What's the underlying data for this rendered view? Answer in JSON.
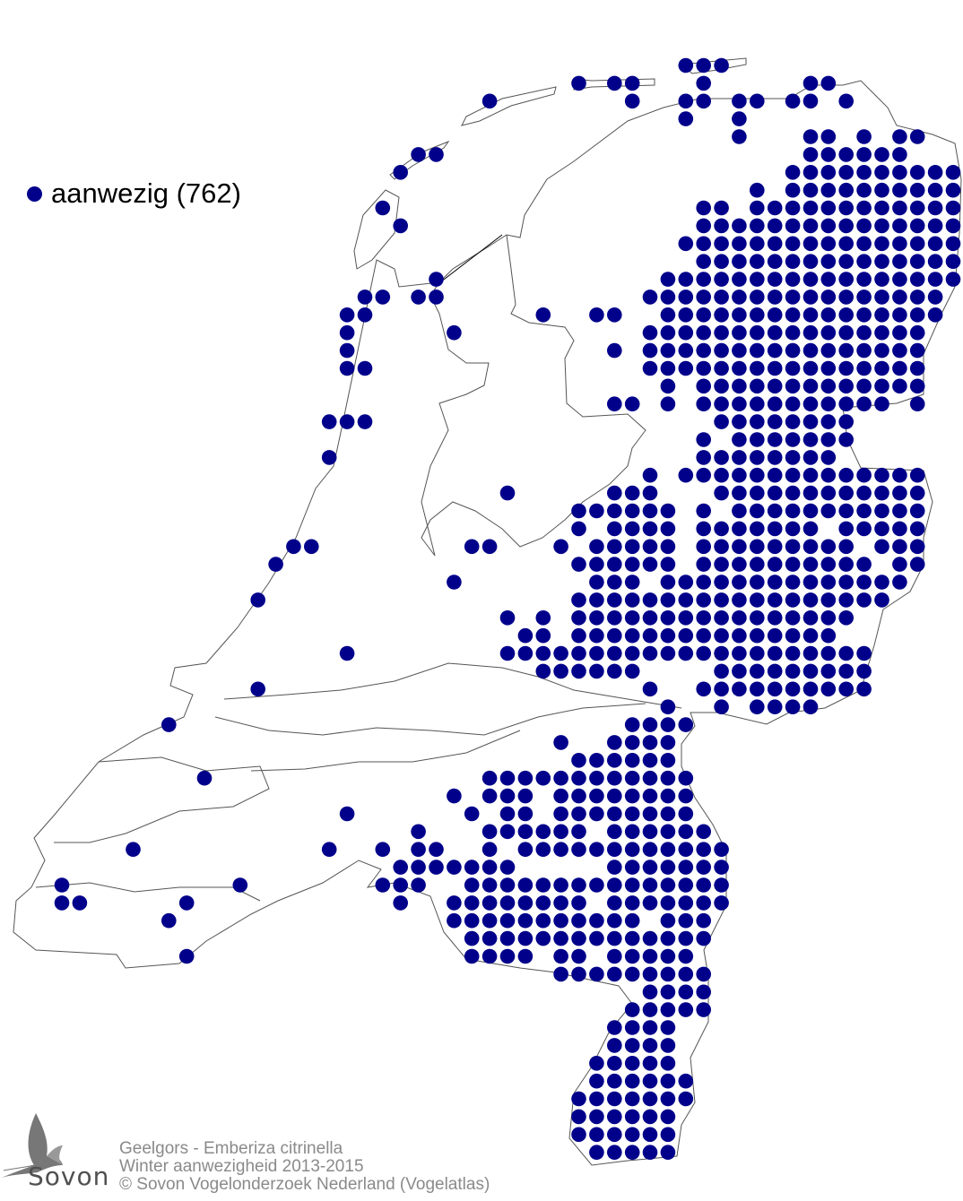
{
  "legend": {
    "label": "aanwezig (762)",
    "dot_color": "#00008b"
  },
  "credits": {
    "line1": "Geelgors - Emberiza citrinella",
    "line2": "Winter aanwezigheid 2013-2015",
    "line3": "© Sovon Vogelonderzoek Nederland (Vogelatlas)"
  },
  "logo": {
    "text": "Sovon",
    "icon": "swallow-bird-icon"
  },
  "map": {
    "region": "Netherlands",
    "symbol": "filled-circle",
    "presence_grid_rows": [
      "35-37",
      "29,31-32,36,42-43",
      "24,32,35-36,38-39,41-42,44",
      "35,38",
      "38,42-43,45,47-48",
      "20-21,42-47",
      "19,41-50",
      "39,41-50",
      "18,36-37,39-50",
      "19,36-50",
      "35-50",
      "36-50",
      "21,34-50",
      "17-18,20-21,33-49",
      "16-17,27,30-31,34-49",
      "16,22,33-48",
      "16,31,33-48",
      "16-17,33-48",
      "34,36-48",
      "31-32,34,36-46,48",
      "15-17,37-44",
      "36,38-44",
      "15,36-43",
      "33,35-48",
      "25,31-33,37-48",
      "29-34,36,38-48",
      "29,31-34,36-42,44-48",
      "13-14,23-24,28,30-34,36-44,46-48",
      "12,29-34,36-45,47-48",
      "22,30-32,34-47",
      "11,29-46",
      "25,27,29-44",
      "26-27,29-43",
      "16,25-45",
      "27-32,37-45",
      "11,33,36-45",
      "34,37,39-42",
      "6,32-35",
      "28,31-34",
      "29-34",
      "8,24-35",
      "22,24-26,28-35",
      "16,23,25-26,28-35",
      "20,24-29,31-36",
      "4,15,18,20-21,24,26-37",
      "19-25,31-37",
      "0,10,18-20,23-37",
      "0-1,7,19,22-29,31-37",
      "6,22-32,34-36",
      "23-36",
      "7,23-26,28-29,31-35",
      "28-36",
      "33-36",
      "32-36",
      "31-34",
      "31-34",
      "30-34",
      "30-35",
      "29-35",
      "29-34",
      "29-34",
      "30-34"
    ]
  }
}
